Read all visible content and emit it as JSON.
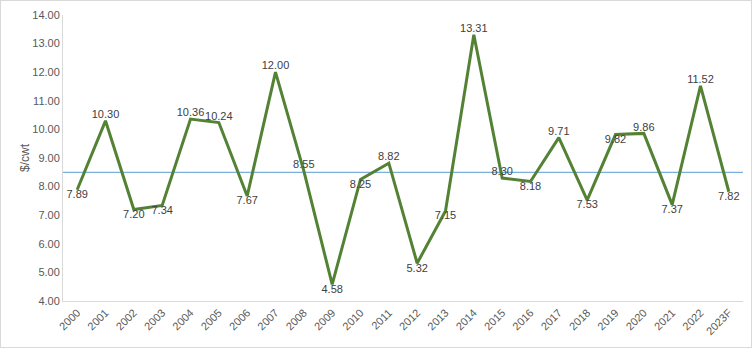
{
  "chart_data": {
    "type": "line",
    "y_label": "$/cwt",
    "categories": [
      "2000",
      "2001",
      "2002",
      "2003",
      "2004",
      "2005",
      "2006",
      "2007",
      "2008",
      "2009",
      "2010",
      "2011",
      "2012",
      "2013",
      "2014",
      "2015",
      "2016",
      "2017",
      "2018",
      "2019",
      "2020",
      "2021",
      "2022",
      "2023F"
    ],
    "values": [
      7.89,
      10.3,
      7.2,
      7.34,
      10.36,
      10.24,
      7.67,
      12.0,
      8.55,
      4.58,
      8.25,
      8.82,
      5.32,
      7.15,
      13.31,
      8.3,
      8.18,
      9.71,
      7.53,
      9.82,
      9.86,
      7.37,
      11.52,
      7.82
    ],
    "value_labels": [
      "7.89",
      "10.30",
      "7.20",
      "7.34",
      "10.36",
      "10.24",
      "7.67",
      "12.00",
      "8.55",
      "4.58",
      "8.25",
      "8.82",
      "5.32",
      "7.15",
      "13.31",
      "8.30",
      "8.18",
      "9.71",
      "7.53",
      "9.82",
      "9.86",
      "7.37",
      "11.52",
      "7.82"
    ],
    "color": "#548235",
    "data_labels": true,
    "grid": false,
    "hline": 8.5,
    "hline_color": "#5b9bd5",
    "ylim": [
      4,
      14
    ],
    "yticks": [
      {
        "value": 4,
        "label": "4.00"
      },
      {
        "value": 5,
        "label": "5.00"
      },
      {
        "value": 6,
        "label": "6.00"
      },
      {
        "value": 7,
        "label": "7.00"
      },
      {
        "value": 8,
        "label": "8.00"
      },
      {
        "value": 9,
        "label": "9.00"
      },
      {
        "value": 10,
        "label": "10.00"
      },
      {
        "value": 11,
        "label": "11.00"
      },
      {
        "value": 12,
        "label": "12.00"
      },
      {
        "value": 13,
        "label": "13.00"
      },
      {
        "value": 14,
        "label": "14.00"
      }
    ]
  }
}
